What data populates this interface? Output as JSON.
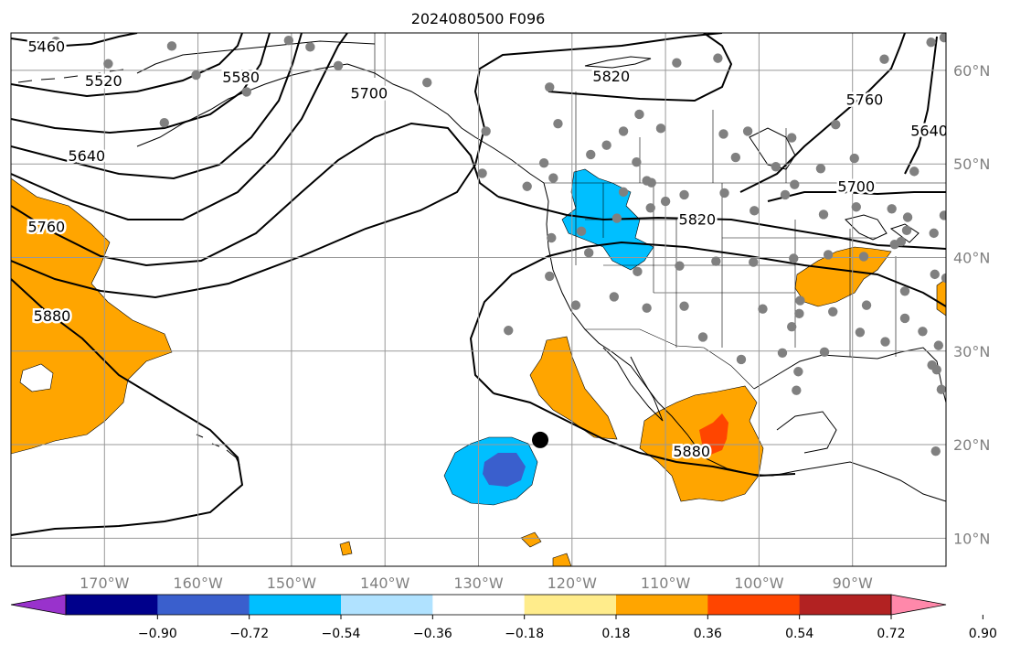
{
  "title": "2024080500 F096",
  "map": {
    "lon_range": [
      -180,
      -80
    ],
    "lat_range": [
      7,
      64
    ],
    "lon_ticks": [
      {
        "value": -170,
        "label": "170°W"
      },
      {
        "value": -160,
        "label": "160°W"
      },
      {
        "value": -150,
        "label": "150°W"
      },
      {
        "value": -140,
        "label": "140°W"
      },
      {
        "value": -130,
        "label": "130°W"
      },
      {
        "value": -120,
        "label": "120°W"
      },
      {
        "value": -110,
        "label": "110°W"
      },
      {
        "value": -100,
        "label": "100°W"
      },
      {
        "value": -90,
        "label": "90°W"
      }
    ],
    "lat_ticks": [
      {
        "value": 60,
        "label": "60°N"
      },
      {
        "value": 50,
        "label": "50°N"
      },
      {
        "value": 40,
        "label": "40°N"
      },
      {
        "value": 30,
        "label": "30°N"
      },
      {
        "value": 20,
        "label": "20°N"
      },
      {
        "value": 10,
        "label": "10°N"
      }
    ],
    "grid": true,
    "contour_labels": [
      {
        "text": "5460",
        "lon": -176.2,
        "lat": 62.6
      },
      {
        "text": "5520",
        "lon": -170.1,
        "lat": 58.9
      },
      {
        "text": "5580",
        "lon": -155.4,
        "lat": 59.3
      },
      {
        "text": "5700",
        "lon": -141.7,
        "lat": 57.6
      },
      {
        "text": "5640",
        "lon": -171.9,
        "lat": 50.9
      },
      {
        "text": "5760",
        "lon": -176.2,
        "lat": 43.3
      },
      {
        "text": "5880",
        "lon": -175.6,
        "lat": 33.8
      },
      {
        "text": "5820",
        "lon": -115.8,
        "lat": 59.4
      },
      {
        "text": "5760",
        "lon": -88.7,
        "lat": 56.9
      },
      {
        "text": "5640",
        "lon": -81.8,
        "lat": 53.6
      },
      {
        "text": "5700",
        "lon": -89.6,
        "lat": 47.6
      },
      {
        "text": "5820",
        "lon": -106.6,
        "lat": 44.1
      },
      {
        "text": "5880",
        "lon": -107.2,
        "lat": 19.3
      }
    ],
    "tropical_center": {
      "lon": -123.4,
      "lat": 20.5
    }
  },
  "colorbar": {
    "ticks": [
      "−0.90",
      "−0.72",
      "−0.54",
      "−0.36",
      "−0.18",
      "0.18",
      "0.36",
      "0.54",
      "0.72",
      "0.90"
    ],
    "colors": [
      "#9932CC",
      "#00008B",
      "#3A5FCD",
      "#00BFFF",
      "#B0E2FF",
      "#FFFFFF",
      "#FFEC8B",
      "#FFA500",
      "#FF4500",
      "#B22222",
      "#FF88AA"
    ]
  },
  "colors": {
    "positive_fill": "#FFA500",
    "strong_positive": "#FF4500",
    "negative_fill": "#00BFFF",
    "strong_negative": "#3A5FCD",
    "station": "#808080",
    "axis_text": "#808080"
  }
}
